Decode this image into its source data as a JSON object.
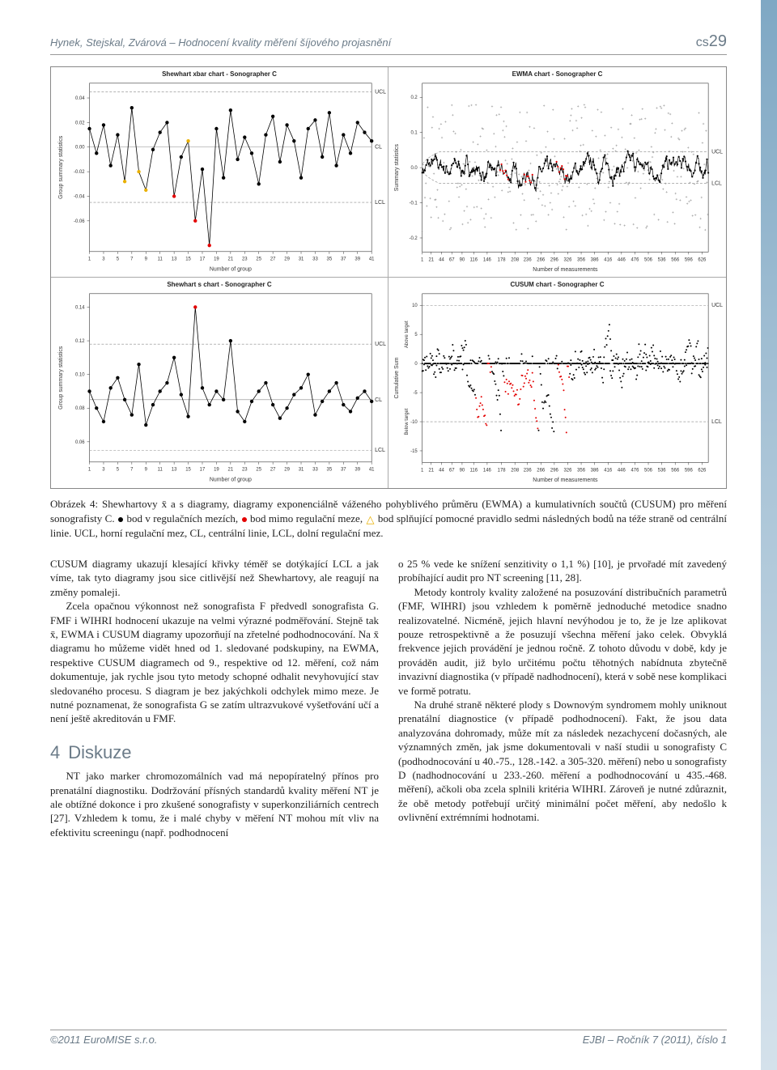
{
  "header": {
    "left": "Hynek, Stejskal, Zvárová – Hodnocení kvality měření šíjového projasnění",
    "right_prefix": "cs",
    "right_num": "29"
  },
  "footer": {
    "left": "©2011 EuroMISE s.r.o.",
    "right": "EJBI – Ročník 7 (2011), číslo 1"
  },
  "figure": {
    "titles": {
      "top_left": "Shewhart xbar chart  -  Sonographer C",
      "top_right": "EWMA chart  -  Sonographer C",
      "bot_left": "Shewhart s chart  -  Sonographer C",
      "bot_right": "CUSUM chart  -  Sonographer C"
    },
    "common": {
      "xlab_group": "Number of group",
      "xlab_meas": "Number of measurements",
      "ylab_group": "Group summary statistics",
      "ylab_sum": "Summary statistics",
      "ylab_cusum": "Cumulative Sum",
      "ylab_above": "Above target",
      "ylab_below": "Below target",
      "ucl": "UCL",
      "lcl": "LCL",
      "cl": "CL",
      "font_title": 8,
      "font_tick": 6,
      "font_label": 7,
      "bg": "#ffffff",
      "axis_color": "#333333",
      "line_color": "#000000",
      "hline_color": "#888888",
      "good_dot": "#000000",
      "near_dot": "#e9b000",
      "bad_dot": "#e30000",
      "cross_color": "#808080"
    },
    "xbar": {
      "type": "line",
      "xticks": [
        1,
        3,
        5,
        7,
        9,
        11,
        13,
        15,
        17,
        19,
        21,
        23,
        25,
        27,
        29,
        31,
        33,
        35,
        37,
        39,
        41
      ],
      "yticks": [
        -0.06,
        -0.04,
        -0.02,
        0.0,
        0.02,
        0.04
      ],
      "ylim": [
        -0.085,
        0.052
      ],
      "ucl": 0.045,
      "cl": 0.0,
      "lcl": -0.045,
      "values": [
        0.015,
        -0.005,
        0.018,
        -0.015,
        0.01,
        -0.028,
        0.032,
        -0.02,
        -0.035,
        -0.002,
        0.012,
        0.02,
        -0.04,
        -0.008,
        0.005,
        -0.06,
        -0.018,
        -0.08,
        0.015,
        -0.025,
        0.03,
        -0.01,
        0.008,
        -0.005,
        -0.03,
        0.01,
        0.025,
        -0.012,
        0.018,
        0.005,
        -0.025,
        0.015,
        0.022,
        -0.008,
        0.028,
        -0.015,
        0.01,
        -0.005,
        0.02,
        0.012,
        0.005
      ],
      "violations": {
        "near": [
          6,
          8,
          9,
          15
        ],
        "out": [
          16,
          18,
          13
        ]
      }
    },
    "schart": {
      "type": "line",
      "xticks": [
        1,
        3,
        5,
        7,
        9,
        11,
        13,
        15,
        17,
        19,
        21,
        23,
        25,
        27,
        29,
        31,
        33,
        35,
        37,
        39,
        41
      ],
      "yticks": [
        0.06,
        0.08,
        0.1,
        0.12,
        0.14
      ],
      "ylim": [
        0.048,
        0.148
      ],
      "ucl": 0.118,
      "cl": 0.085,
      "lcl": 0.055,
      "values": [
        0.09,
        0.08,
        0.072,
        0.092,
        0.098,
        0.085,
        0.076,
        0.106,
        0.07,
        0.082,
        0.09,
        0.095,
        0.11,
        0.088,
        0.075,
        0.14,
        0.092,
        0.082,
        0.09,
        0.085,
        0.12,
        0.078,
        0.072,
        0.084,
        0.09,
        0.095,
        0.082,
        0.074,
        0.08,
        0.088,
        0.092,
        0.1,
        0.076,
        0.084,
        0.09,
        0.095,
        0.082,
        0.078,
        0.086,
        0.09,
        0.084
      ],
      "violations": {
        "near": [],
        "out": [
          16
        ]
      }
    },
    "ewma": {
      "type": "scatter+line",
      "xticks": [
        1,
        21,
        44,
        67,
        90,
        116,
        146,
        178,
        208,
        236,
        266,
        296,
        326,
        356,
        386,
        416,
        446,
        476,
        506,
        536,
        566,
        596,
        626
      ],
      "yticks": [
        -0.2,
        -0.1,
        0.0,
        0.1,
        0.2
      ],
      "ylim": [
        -0.24,
        0.24
      ],
      "n": 640,
      "scatter_band": 0.18,
      "ewma_line_amp": 0.03,
      "ucl": 0.045,
      "lcl": -0.045,
      "out_ranges": [
        [
          175,
          195
        ],
        [
          228,
          248
        ],
        [
          300,
          326
        ]
      ]
    },
    "cusum": {
      "type": "cusum",
      "xticks": [
        1,
        21,
        44,
        67,
        90,
        116,
        146,
        178,
        208,
        236,
        266,
        296,
        326,
        356,
        386,
        416,
        446,
        476,
        506,
        536,
        566,
        596,
        626
      ],
      "yticks": [
        -15,
        -10,
        -5,
        0,
        5,
        10
      ],
      "ylim": [
        -17,
        12
      ],
      "ucl": 10,
      "lcl": -10,
      "n": 640,
      "out_ranges": [
        [
          120,
          155
        ],
        [
          185,
          260
        ],
        [
          305,
          330
        ]
      ]
    }
  },
  "caption": {
    "lead": "Obrázek 4: Shewhartovy x̄ a s diagramy, diagramy exponenciálně váženého pohyblivého průměru (EWMA) a kumulativních součtů (CUSUM) pro měření sonografisty C. ",
    "good": " bod v regulačních mezích, ",
    "bad": " bod mimo regulační meze, ",
    "tri": " bod splňující pomocné pravidlo sedmi následných bodů na téže straně od centrální linie. UCL, horní regulační mez, CL, centrální linie, LCL, dolní regulační mez.",
    "bullet_good": "#000000",
    "bullet_bad": "#e30000",
    "tri_color": "#e9b000"
  },
  "body": {
    "p1": "CUSUM diagramy ukazují klesající křivky téměř se dotýkající LCL a jak víme, tak tyto diagramy jsou sice citlivější než Shewhartovy, ale reagují na změny pomaleji.",
    "p2": "Zcela opačnou výkonnost než sonografista F předvedl sonografista G. FMF i WIHRI hodnocení ukazuje na velmi výrazné podměřování. Stejně tak x̄, EWMA i CUSUM diagramy upozorňují na zřetelné podhodnocování. Na x̄ diagramu ho můžeme vidět hned od 1. sledované podskupiny, na EWMA, respektive CUSUM diagramech od 9., respektive od 12. měření, což nám dokumentuje, jak rychle jsou tyto metody schopné odhalit nevyhovující stav sledovaného procesu. S diagram je bez jakýchkoli odchylek mimo meze. Je nutné poznamenat, že sonografista G se zatím ultrazvukové vyšetřování učí a není ještě akreditován u FMF.",
    "section": "Diskuze",
    "section_num": "4",
    "p3": "NT jako marker chromozomálních vad má nepopíratelný přínos pro prenatální diagnostiku. Dodržování přísných standardů kvality měření NT je ale obtížné dokonce i pro zkušené sonografisty v superkonziliárních centrech [27]. Vzhledem k tomu, že i malé chyby v měření NT mohou mít vliv na efektivitu screeningu (např. podhodnocení",
    "p4": "o 25 % vede ke snížení senzitivity o 1,1 %) [10], je prvořadé mít zavedený probíhající audit pro NT screening [11, 28].",
    "p5": "Metody kontroly kvality založené na posuzování distribučních parametrů (FMF, WIHRI) jsou vzhledem k poměrně jednoduché metodice snadno realizovatelné. Nicméně, jejich hlavní nevýhodou je to, že je lze aplikovat pouze retrospektivně a že posuzují všechna měření jako celek. Obvyklá frekvence jejich provádění je jednou ročně. Z tohoto důvodu v době, kdy je prováděn audit, již bylo určitému počtu těhotných nabídnuta zbytečně invazivní diagnostika (v případě nadhodnocení), která v sobě nese komplikaci ve formě potratu.",
    "p6": "Na druhé straně některé plody s Downovým syndromem mohly uniknout prenatální diagnostice (v případě podhodnocení). Fakt, že jsou data analyzována dohromady, může mít za následek nezachycení dočasných, ale významných změn, jak jsme dokumentovali v naší studii u sonografisty C (podhodnocování u 40.-75., 128.-142. a 305-320. měření) nebo u sonografisty D (nadhodnocování u 233.-260. měření a  podhodnocování u 435.-468. měření), ačkoli oba zcela splnili kritéria WIHRI. Zároveň je nutné zdůraznit, že obě metody potřebují určitý minimální počet měření, aby nedošlo k ovlivnění extrémními hodnotami."
  }
}
